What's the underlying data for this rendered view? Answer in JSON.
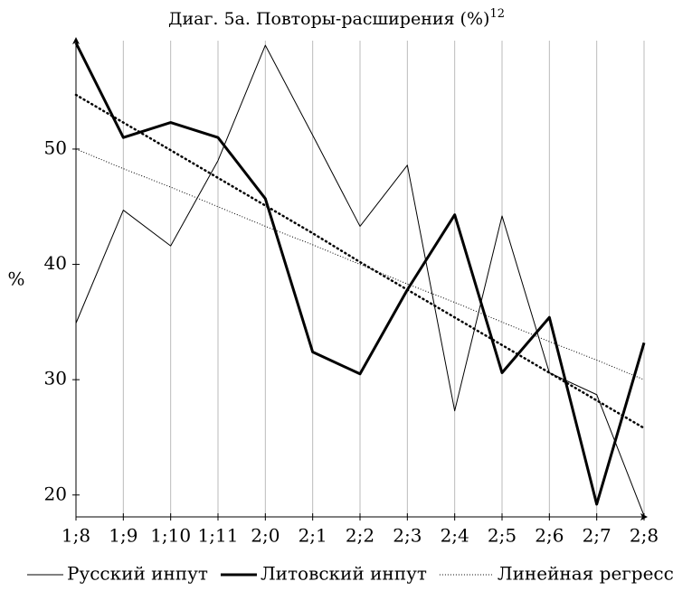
{
  "chart_data": {
    "type": "line",
    "title": "Диаг. 5а. Повторы-расширения (%)",
    "title_superscript": "12",
    "y_label": "%",
    "categories": [
      "1;8",
      "1;9",
      "1;10",
      "1;11",
      "2;0",
      "2;1",
      "2;2",
      "2;3",
      "2;4",
      "2;5",
      "2;6",
      "2;7",
      "2;8"
    ],
    "series": [
      {
        "name": "Русский инпут",
        "color": "#000000",
        "style": "thin",
        "values": [
          34.9,
          44.7,
          41.6,
          49.0,
          59.0,
          51.2,
          43.3,
          48.6,
          27.3,
          44.2,
          30.6,
          28.7,
          18.2
        ]
      },
      {
        "name": "Литовский инпут",
        "color": "#000000",
        "style": "thick",
        "values": [
          59.2,
          51.0,
          52.3,
          51.0,
          45.7,
          32.4,
          30.5,
          37.8,
          44.3,
          30.6,
          35.4,
          19.2,
          33.2
        ]
      },
      {
        "color": "#000000",
        "style": "thick-dotted",
        "values": [
          54.7,
          52.3,
          49.9,
          47.5,
          45.1,
          42.7,
          40.2,
          37.8,
          35.4,
          33.0,
          30.6,
          28.2,
          25.8
        ]
      },
      {
        "name": "Линейная регрессия",
        "color": "#000000",
        "style": "thin-dotted",
        "values": [
          50.0,
          48.3,
          46.7,
          45.0,
          43.3,
          41.7,
          40.0,
          38.3,
          36.7,
          35.0,
          33.3,
          31.7,
          30.0
        ]
      }
    ],
    "ylim": [
      18.1,
      59.4
    ],
    "yticks": [
      20,
      30,
      40,
      50
    ],
    "grid": "x",
    "legend": "bottom"
  }
}
